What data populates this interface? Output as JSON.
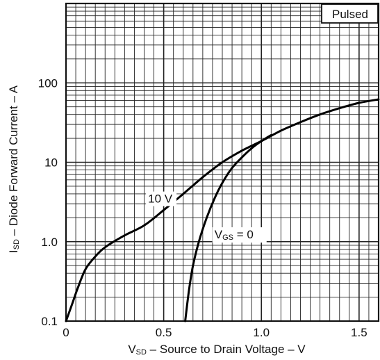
{
  "chart_data": {
    "type": "line",
    "xlabel": {
      "prefix": "V",
      "subscript": "SD",
      "rest": " – Source to Drain Voltage – V"
    },
    "ylabel": {
      "prefix": "I",
      "subscript": "SD",
      "rest": " – Diode Forward Current – A"
    },
    "xlim": [
      0,
      1.6
    ],
    "ylim": [
      0.1,
      1000
    ],
    "yscale": "log",
    "grid": true,
    "x_ticks": [
      {
        "value": 0,
        "label": "0"
      },
      {
        "value": 0.5,
        "label": "0.5"
      },
      {
        "value": 1.0,
        "label": "1.0"
      },
      {
        "value": 1.5,
        "label": "1.5"
      }
    ],
    "y_ticks": [
      {
        "value": 0.1,
        "label": "0.1"
      },
      {
        "value": 1,
        "label": "1.0"
      },
      {
        "value": 10,
        "label": "10"
      },
      {
        "value": 100,
        "label": "100"
      }
    ],
    "legend_box": "Pulsed",
    "series": [
      {
        "x": [
          0.0,
          0.03,
          0.06,
          0.1,
          0.15,
          0.2,
          0.3,
          0.4,
          0.5,
          0.6,
          0.7,
          0.8,
          0.9,
          1.0,
          1.1,
          1.2,
          1.3,
          1.4,
          1.5,
          1.6
        ],
        "y": [
          0.1,
          0.16,
          0.26,
          0.45,
          0.65,
          0.85,
          1.2,
          1.6,
          2.5,
          4.0,
          6.5,
          10.0,
          14.0,
          18.5,
          25.0,
          32.0,
          40.0,
          48.0,
          56.0,
          62.0
        ]
      },
      {
        "x": [
          0.61,
          0.63,
          0.65,
          0.68,
          0.72,
          0.76,
          0.8,
          0.85,
          0.9,
          0.95,
          1.0,
          1.05
        ],
        "y": [
          0.1,
          0.25,
          0.5,
          1.0,
          2.0,
          3.5,
          5.5,
          8.5,
          11.5,
          15.0,
          18.5,
          22.0
        ]
      }
    ],
    "annotations": [
      {
        "text": "10 V",
        "x": 0.42,
        "y": 3.1
      },
      {
        "prefix": "V",
        "subscript": "GS",
        "rest": " = 0",
        "x": 0.76,
        "y": 1.1
      }
    ]
  }
}
